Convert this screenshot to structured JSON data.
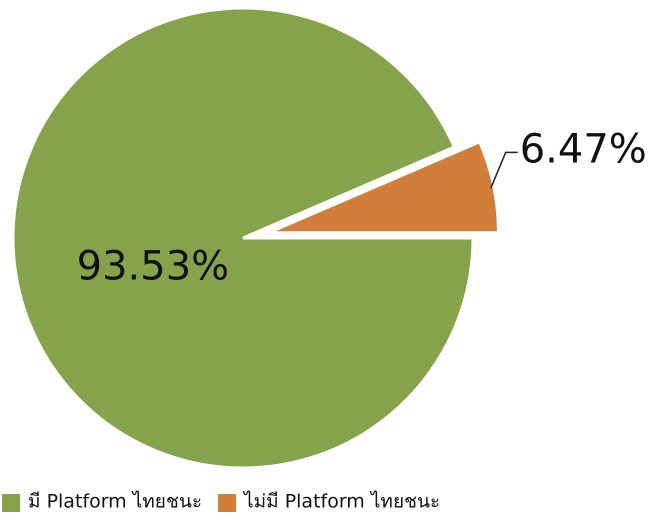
{
  "chart_data": {
    "type": "pie",
    "categories": [
      "มี Platform ไทยชนะ",
      "ไม่มี Platform ไทยชนะ"
    ],
    "values": [
      93.53,
      6.47
    ],
    "value_labels": [
      "93.53%",
      "6.47%"
    ],
    "colors": [
      "#84a34a",
      "#d07e3a"
    ],
    "exploded": [
      false,
      true
    ],
    "legend": "bottom"
  }
}
